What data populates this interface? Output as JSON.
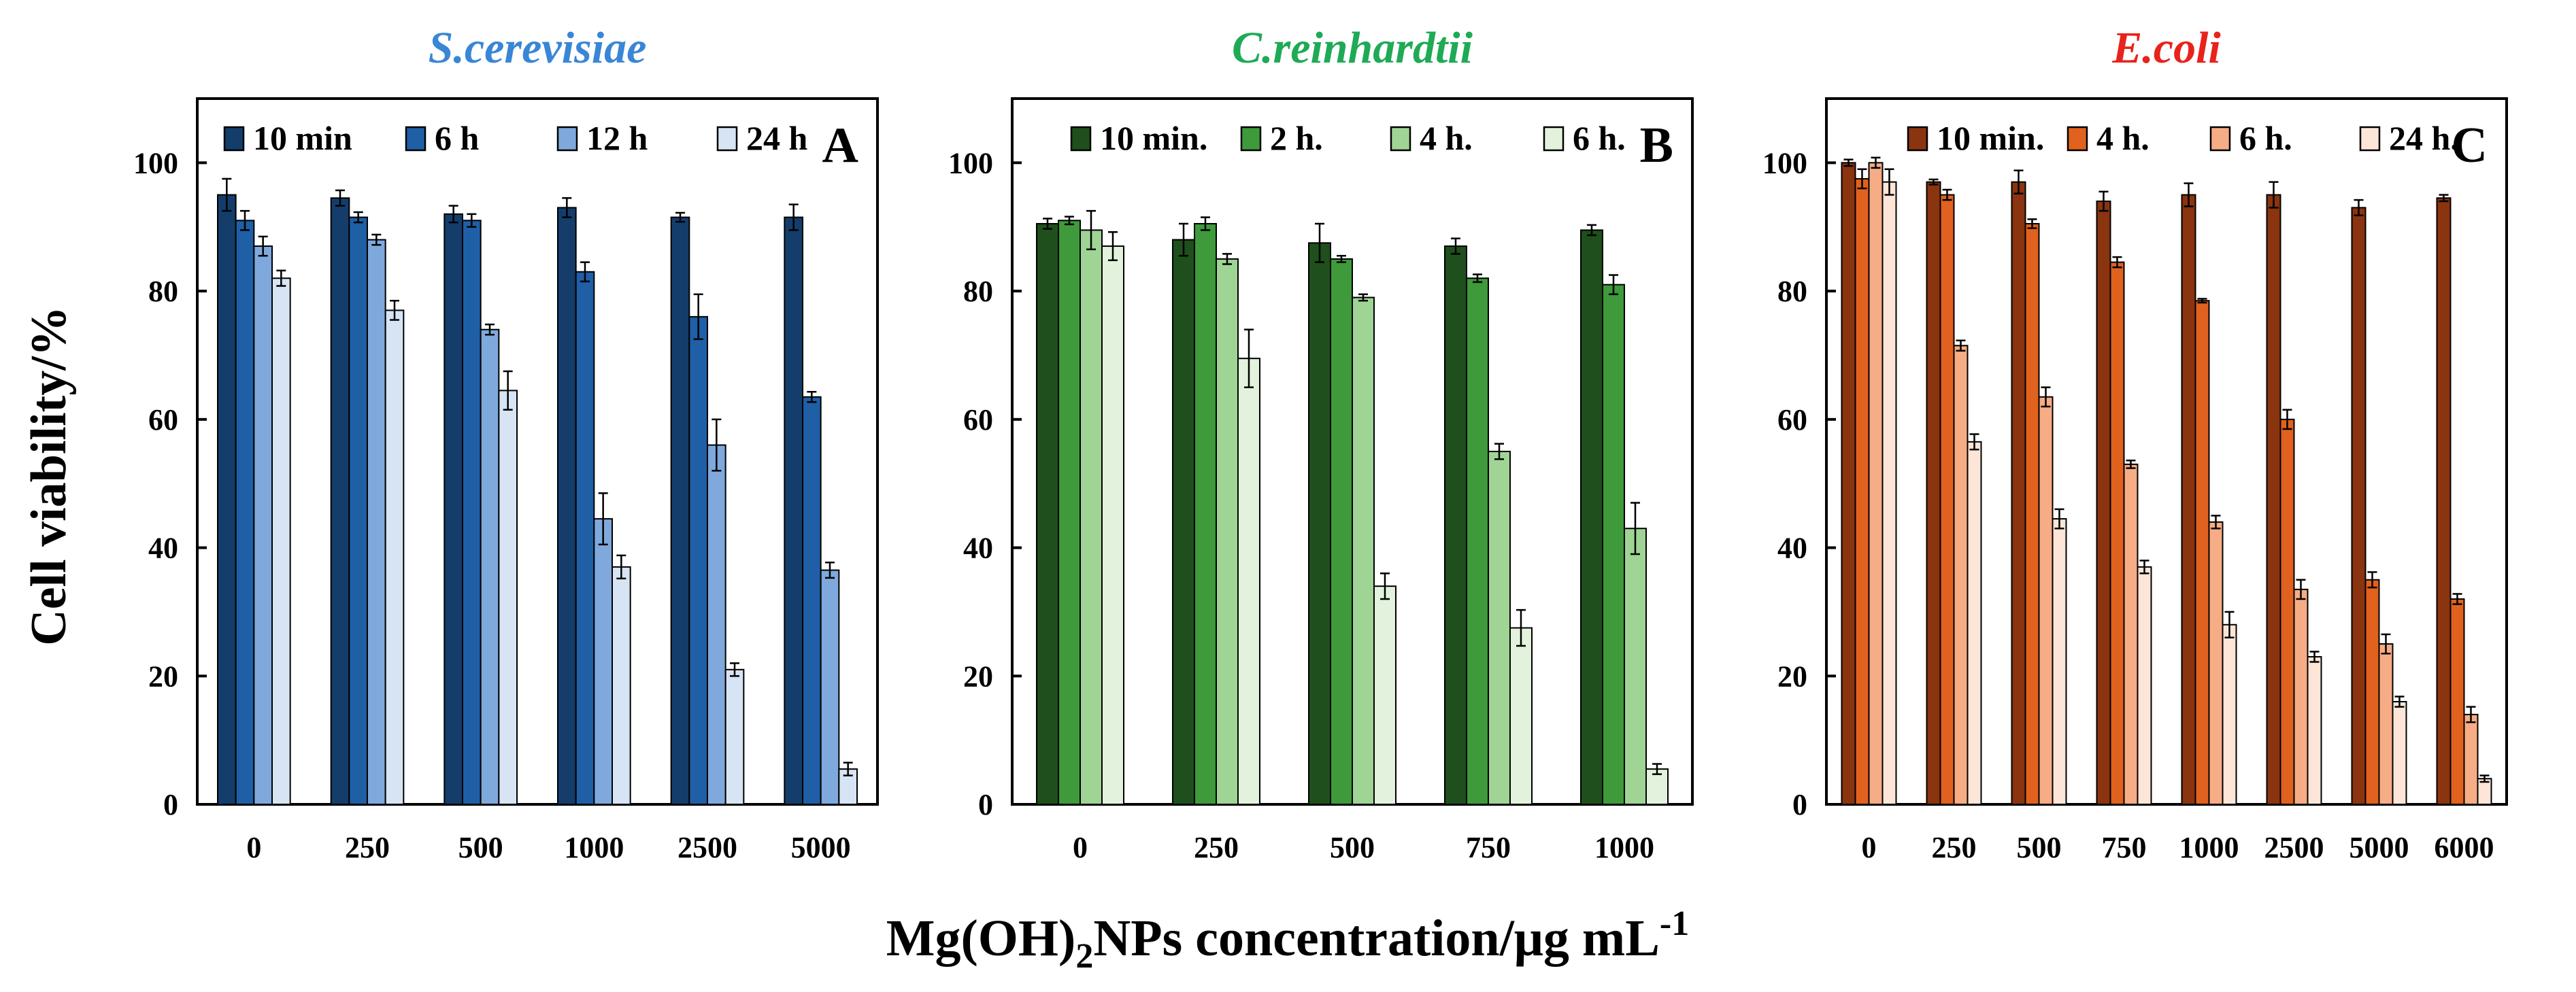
{
  "figure": {
    "ylabel": "Cell viability/%",
    "xlabel_main": "Mg(OH)",
    "xlabel_sub": "2",
    "xlabel_rest": "NPs concentration/μg mL",
    "xlabel_sup": "-1"
  },
  "chart_data": [
    {
      "type": "bar",
      "title": "S.cerevisiae",
      "title_color": "#3a86d6",
      "panel_letter": "A",
      "xlabel": "Mg(OH)2NPs concentration/μg mL-1",
      "ylabel": "Cell viability/%",
      "ylim": [
        0,
        110
      ],
      "yticks": [
        0,
        20,
        40,
        60,
        80,
        100
      ],
      "legend_position": "top",
      "categories": [
        "0",
        "250",
        "500",
        "1000",
        "2500",
        "5000"
      ],
      "series": [
        {
          "name": "10 min",
          "color": "#143d6b",
          "values": [
            95,
            94.5,
            92,
            93,
            91.5,
            91.5
          ],
          "errors": [
            2.5,
            1.2,
            1.3,
            1.5,
            0.7,
            2
          ]
        },
        {
          "name": "6 h",
          "color": "#1f5fa6",
          "values": [
            91,
            91.5,
            91,
            83,
            76,
            63.5
          ],
          "errors": [
            1.5,
            0.8,
            1,
            1.5,
            3.5,
            0.8
          ]
        },
        {
          "name": "12 h",
          "color": "#7fa9dc",
          "values": [
            87,
            88,
            74,
            44.5,
            56,
            36.5
          ],
          "errors": [
            1.5,
            0.8,
            0.8,
            4,
            4,
            1.2
          ]
        },
        {
          "name": "24 h",
          "color": "#d7e4f3",
          "values": [
            82,
            77,
            64.5,
            37,
            21,
            5.5
          ],
          "errors": [
            1.2,
            1.5,
            3,
            1.8,
            1,
            1
          ]
        }
      ]
    },
    {
      "type": "bar",
      "title": "C.reinhardtii",
      "title_color": "#1faa55",
      "panel_letter": "B",
      "xlabel": "Mg(OH)2NPs concentration/μg mL-1",
      "ylabel": "Cell viability/%",
      "ylim": [
        0,
        110
      ],
      "yticks": [
        0,
        20,
        40,
        60,
        80,
        100
      ],
      "legend_position": "top",
      "categories": [
        "0",
        "250",
        "500",
        "750",
        "1000"
      ],
      "series": [
        {
          "name": "10 min.",
          "color": "#1f4f1c",
          "values": [
            90.5,
            88,
            87.5,
            87,
            89.5
          ],
          "errors": [
            0.8,
            2.5,
            3,
            1.2,
            0.8
          ]
        },
        {
          "name": "2 h.",
          "color": "#3e9a3b",
          "values": [
            91,
            90.5,
            85,
            82,
            81
          ],
          "errors": [
            0.6,
            1,
            0.5,
            0.6,
            1.5
          ]
        },
        {
          "name": "4 h.",
          "color": "#9fd495",
          "values": [
            89.5,
            85,
            79,
            55,
            43
          ],
          "errors": [
            3,
            0.8,
            0.5,
            1.2,
            4
          ]
        },
        {
          "name": "6 h.",
          "color": "#e3f2dc",
          "values": [
            87,
            69.5,
            34,
            27.5,
            5.5
          ],
          "errors": [
            2.2,
            4.5,
            2,
            2.8,
            0.8
          ]
        }
      ]
    },
    {
      "type": "bar",
      "title": "E.coli",
      "title_color": "#e8231c",
      "panel_letter": "C",
      "xlabel": "Mg(OH)2NPs concentration/μg mL-1",
      "ylabel": "Cell viability/%",
      "ylim": [
        0,
        110
      ],
      "yticks": [
        0,
        20,
        40,
        60,
        80,
        100
      ],
      "legend_position": "top",
      "categories": [
        "0",
        "250",
        "500",
        "750",
        "1000",
        "2500",
        "5000",
        "6000"
      ],
      "series": [
        {
          "name": "10 min.",
          "color": "#8a3410",
          "values": [
            100,
            97,
            97,
            94,
            95,
            95,
            93,
            94.5
          ],
          "errors": [
            0.5,
            0.4,
            1.8,
            1.5,
            1.8,
            2,
            1.2,
            0.5
          ]
        },
        {
          "name": "4 h.",
          "color": "#e0621e",
          "values": [
            97.5,
            95,
            90.5,
            84.5,
            78.5,
            60,
            35,
            32
          ],
          "errors": [
            1.5,
            0.8,
            0.7,
            0.8,
            0.3,
            1.5,
            1.2,
            0.8
          ]
        },
        {
          "name": "6 h.",
          "color": "#f6ad86",
          "values": [
            100,
            71.5,
            63.5,
            53,
            44,
            33.5,
            25,
            14
          ],
          "errors": [
            0.8,
            0.8,
            1.5,
            0.6,
            1,
            1.5,
            1.5,
            1.2
          ]
        },
        {
          "name": "24 h.",
          "color": "#fde6d8",
          "values": [
            97,
            56.5,
            44.5,
            37,
            28,
            23,
            16,
            4
          ],
          "errors": [
            2,
            1.2,
            1.5,
            1,
            2,
            0.8,
            0.8,
            0.5
          ]
        }
      ]
    }
  ]
}
